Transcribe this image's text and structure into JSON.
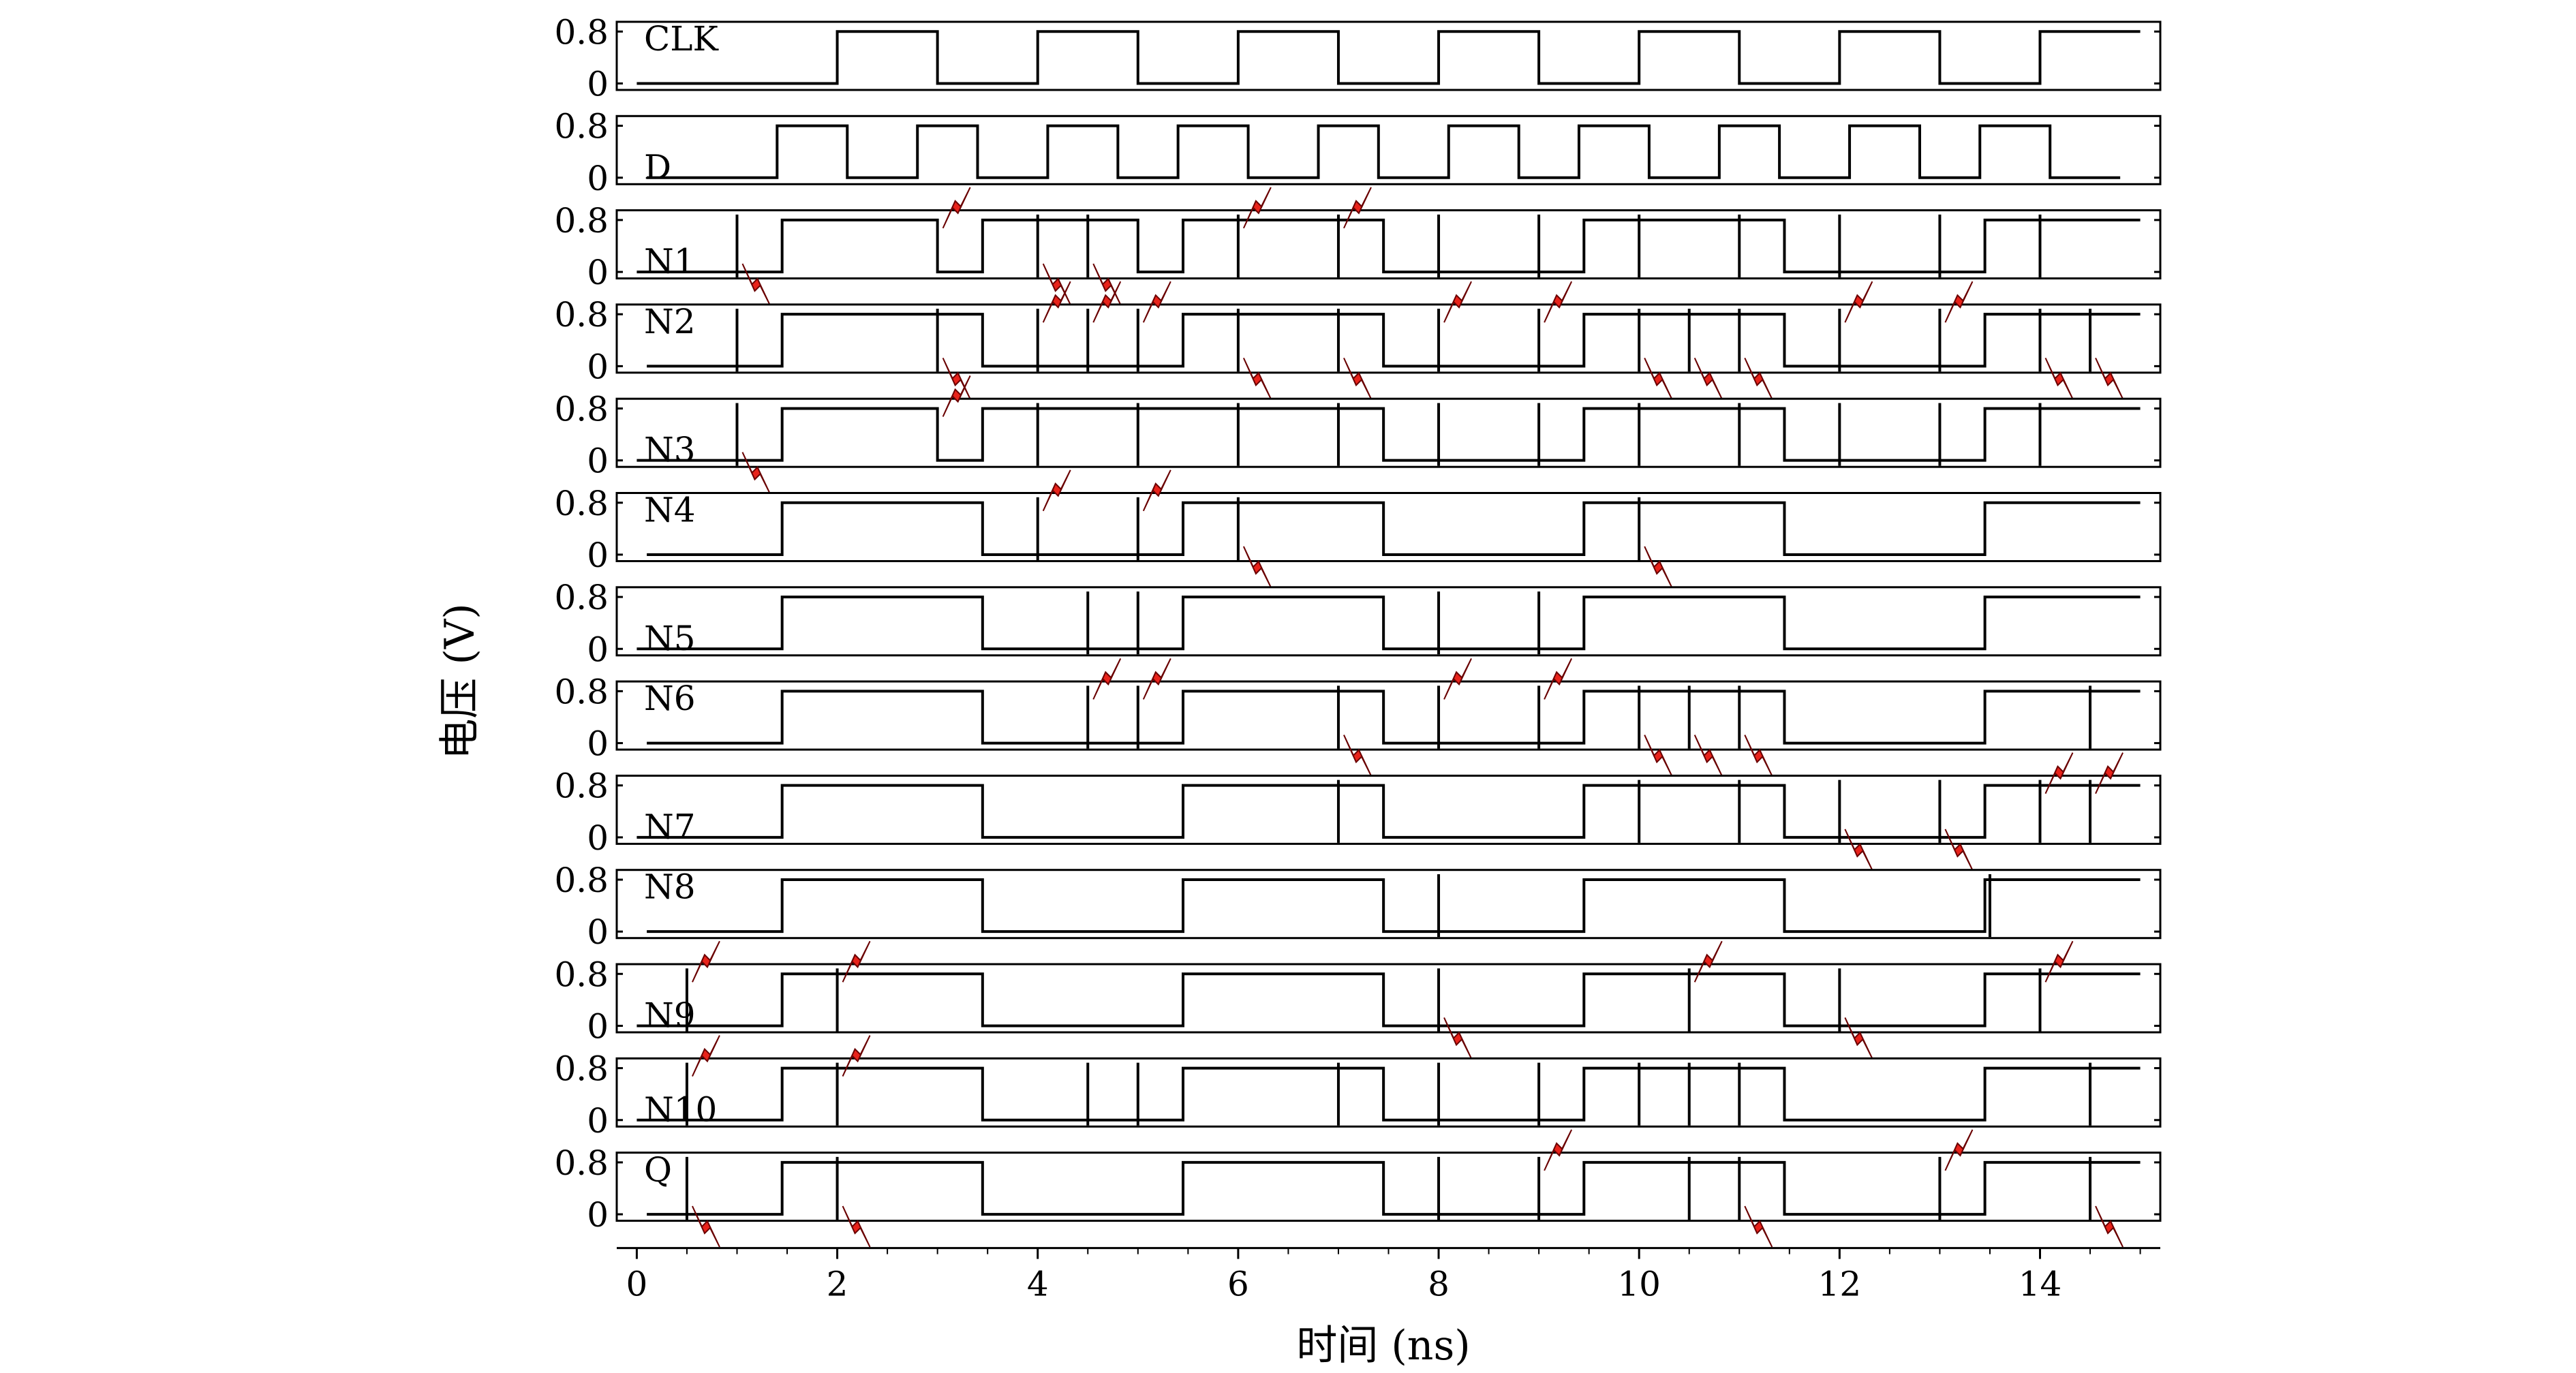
{
  "chart_data": {
    "type": "line",
    "xlabel": "时间 (ns)",
    "ylabel": "电压 (V)",
    "xlim": [
      -0.2,
      15.2
    ],
    "ylim": [
      -0.1,
      0.95
    ],
    "x_ticks": [
      0,
      2,
      4,
      6,
      8,
      10,
      12,
      14
    ],
    "y_ticks": [
      0,
      0.8
    ],
    "y_tick_labels": [
      "0",
      "0.8"
    ],
    "panels": [
      {
        "name": "CLK",
        "label_pos": "top",
        "edges": [
          0,
          2,
          3,
          4,
          5,
          6,
          7,
          8,
          9,
          10,
          11,
          12,
          13,
          14,
          15
        ],
        "glitches": [],
        "strikes_up": [],
        "strikes_down": []
      },
      {
        "name": "D",
        "label_pos": "bottom",
        "edges": [
          0.1,
          1.4,
          2.1,
          2.8,
          3.4,
          4.1,
          4.8,
          5.4,
          6.1,
          6.8,
          7.4,
          8.1,
          8.8,
          9.4,
          10.1,
          10.8,
          11.4,
          12.1,
          12.8,
          13.4,
          14.1,
          14.8
        ],
        "glitches": [],
        "strikes_up": [],
        "strikes_down": []
      },
      {
        "name": "N1",
        "label_pos": "bottom",
        "edges": [
          0,
          1.45,
          3,
          3.45,
          5,
          5.45,
          7.45,
          9.45,
          11.45,
          13.45,
          15
        ],
        "glitches": [
          1,
          4,
          4.5,
          6,
          7,
          8,
          9,
          10,
          11,
          12,
          13,
          14
        ],
        "strikes_up": [
          3,
          6,
          7
        ],
        "strikes_down": [
          1,
          4,
          4.5
        ]
      },
      {
        "name": "N2",
        "label_pos": "top",
        "edges": [
          0.1,
          1.45,
          3.45,
          5.45,
          7.45,
          9.45,
          11.45,
          13.45,
          15
        ],
        "glitches": [
          1,
          3,
          4,
          4.5,
          5,
          6,
          7,
          8,
          9,
          10,
          10.5,
          11,
          12,
          13,
          14,
          14.5
        ],
        "strikes_up": [
          4,
          4.5,
          5,
          8,
          9,
          12,
          13
        ],
        "strikes_down": [
          3,
          6,
          7,
          10,
          10.5,
          11,
          14,
          14.5
        ]
      },
      {
        "name": "N3",
        "label_pos": "bottom",
        "edges": [
          0,
          1.45,
          3,
          3.45,
          7.45,
          9.45,
          11.45,
          13.45,
          15
        ],
        "glitches": [
          1,
          4,
          5,
          6,
          7,
          8,
          9,
          10,
          11,
          12,
          13,
          14
        ],
        "strikes_up": [
          3
        ],
        "strikes_down": [
          1
        ]
      },
      {
        "name": "N4",
        "label_pos": "top",
        "edges": [
          0.1,
          1.45,
          3.45,
          5.45,
          7.45,
          9.45,
          11.45,
          13.45,
          15
        ],
        "glitches": [
          4,
          5,
          6,
          10
        ],
        "strikes_up": [
          4,
          5
        ],
        "strikes_down": [
          6,
          10
        ]
      },
      {
        "name": "N5",
        "label_pos": "bottom",
        "edges": [
          0,
          1.45,
          3.45,
          5.45,
          7.45,
          9.45,
          11.45,
          13.45,
          15
        ],
        "glitches": [
          4.5,
          5,
          8,
          9
        ],
        "strikes_up": [],
        "strikes_down": []
      },
      {
        "name": "N6",
        "label_pos": "top",
        "edges": [
          0.1,
          1.45,
          3.45,
          5.45,
          7.45,
          9.45,
          11.45,
          13.45,
          15
        ],
        "glitches": [
          4.5,
          5,
          7,
          8,
          9,
          10,
          10.5,
          11,
          14.5
        ],
        "strikes_up": [
          4.5,
          5,
          8,
          9
        ],
        "strikes_down": [
          7,
          10,
          10.5,
          11
        ]
      },
      {
        "name": "N7",
        "label_pos": "bottom",
        "edges": [
          0,
          1.45,
          3.45,
          5.45,
          7.45,
          9.45,
          11.45,
          13.45,
          15
        ],
        "glitches": [
          7,
          10,
          11,
          12,
          13,
          14,
          14.5
        ],
        "strikes_up": [
          14,
          14.5
        ],
        "strikes_down": [
          12,
          13
        ]
      },
      {
        "name": "N8",
        "label_pos": "top",
        "edges": [
          0.1,
          1.45,
          3.45,
          5.45,
          7.45,
          9.45,
          11.45,
          13.45,
          15
        ],
        "glitches": [
          8,
          13.5
        ],
        "strikes_up": [],
        "strikes_down": []
      },
      {
        "name": "N9",
        "label_pos": "bottom",
        "edges": [
          0,
          1.45,
          3.45,
          5.45,
          7.45,
          9.45,
          11.45,
          13.45,
          15
        ],
        "glitches": [
          0.5,
          2,
          8,
          10.5,
          12,
          14
        ],
        "strikes_up": [
          0.5,
          2,
          10.5,
          14
        ],
        "strikes_down": [
          8,
          12
        ]
      },
      {
        "name": "N10",
        "label_pos": "bottom",
        "edges": [
          0,
          1.45,
          3.45,
          5.45,
          7.45,
          9.45,
          11.45,
          13.45,
          15
        ],
        "glitches": [
          0.5,
          2,
          4.5,
          5,
          7,
          8,
          9,
          10,
          10.5,
          11,
          14.5
        ],
        "strikes_up": [
          0.5,
          2
        ],
        "strikes_down": []
      },
      {
        "name": "Q",
        "label_pos": "top",
        "edges": [
          0.1,
          1.45,
          3.45,
          5.45,
          7.45,
          9.45,
          11.45,
          13.45,
          15
        ],
        "glitches": [
          0.5,
          2,
          8,
          9,
          10.5,
          11,
          13,
          14.5
        ],
        "strikes_up": [
          9,
          13
        ],
        "strikes_down": [
          0.5,
          2,
          11,
          14.5
        ]
      }
    ]
  },
  "colors": {
    "trace": "#000000",
    "strike_fill": "#e8231b",
    "strike_stroke": "#6a0000",
    "frame": "#000000"
  }
}
